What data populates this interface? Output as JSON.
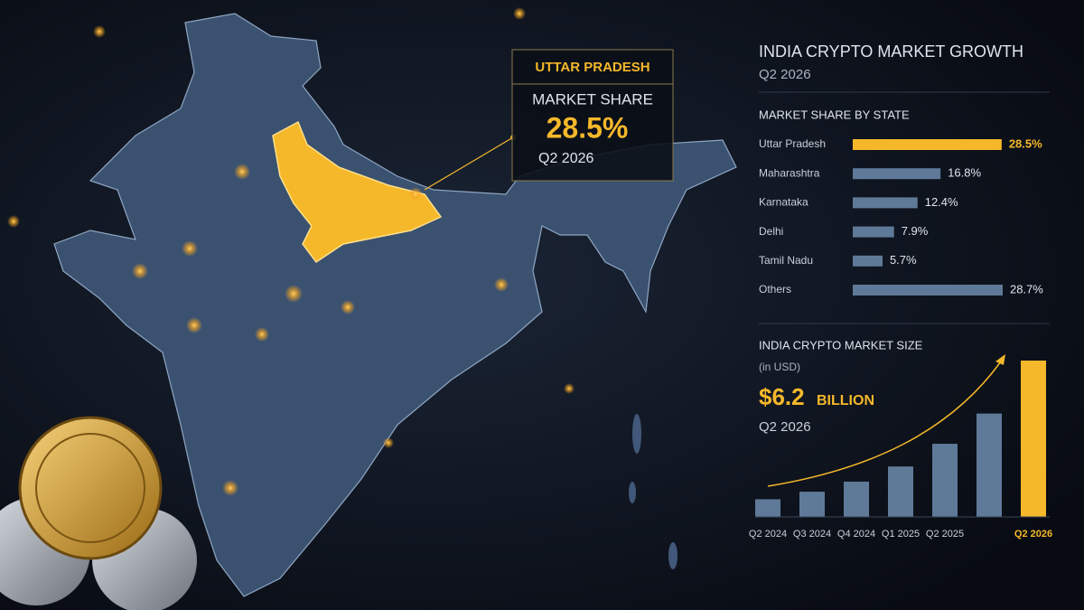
{
  "header": {
    "title": "INDIA CRYPTO MARKET GROWTH",
    "subtitle": "Q2 2026"
  },
  "callout": {
    "state": "UTTAR PRADESH",
    "label": "MARKET SHARE",
    "value": "28.5%",
    "period": "Q2 2026"
  },
  "chart_data": [
    {
      "type": "hbar",
      "title": "MARKET SHARE BY STATE",
      "categories": [
        "Uttar Pradesh",
        "Maharashtra",
        "Karnataka",
        "Delhi",
        "Tamil Nadu",
        "Others"
      ],
      "values": [
        28.5,
        16.8,
        12.4,
        7.9,
        5.7,
        28.7
      ],
      "value_labels": [
        "28.5%",
        "16.8%",
        "12.4%",
        "7.9%",
        "5.7%",
        "28.7%"
      ],
      "colors": [
        "#f5b82a",
        "#5f7a99",
        "#5f7a99",
        "#5f7a99",
        "#5f7a99",
        "#5f7a99"
      ]
    },
    {
      "type": "bar",
      "title": "INDIA CRYPTO MARKET SIZE",
      "subtitle": "(in USD)",
      "headline_value": "$6.2",
      "headline_unit": "BILLION",
      "headline_period": "Q2 2026",
      "categories": [
        "Q2 2024",
        "Q3 2024",
        "Q4 2024",
        "Q1 2025",
        "Q2 2025",
        null,
        "Q2 2026"
      ],
      "values": [
        0.7,
        1.0,
        1.4,
        2.0,
        2.9,
        4.1,
        6.2
      ],
      "colors": [
        "#5f7a99",
        "#5f7a99",
        "#5f7a99",
        "#5f7a99",
        "#5f7a99",
        "#5f7a99",
        "#f5b82a"
      ]
    }
  ]
}
